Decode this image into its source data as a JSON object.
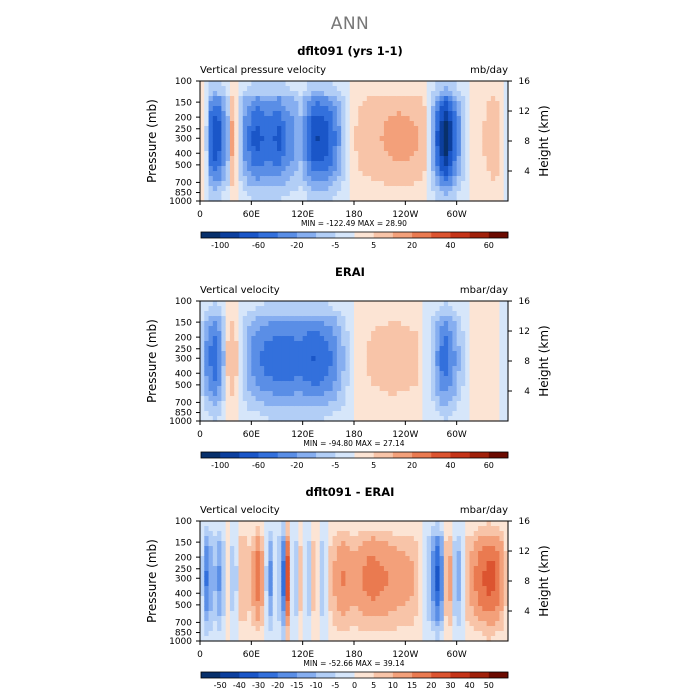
{
  "main_title": "ANN",
  "colors": {
    "palette_blue_to_red": [
      "#08306b",
      "#0c3f9e",
      "#1a56c8",
      "#3370dc",
      "#5a8ee6",
      "#86aef0",
      "#b2cef6",
      "#d6e6fa",
      "#fce4d4",
      "#f8c4a8",
      "#f3a07a",
      "#ea7a50",
      "#dc5430",
      "#c53418",
      "#a0200a",
      "#6b0a00"
    ]
  },
  "chart_data": [
    {
      "type": "heatmap",
      "title": "dflt091 (yrs 1-1)",
      "left_label": "Vertical pressure velocity",
      "right_label": "mb/day",
      "xlabel": "",
      "ylabel": "Pressure (mb)",
      "ylabel_right": "Height (km)",
      "x_ticks": [
        "0",
        "60E",
        "120E",
        "180",
        "120W",
        "60W"
      ],
      "x_tick_lon": [
        0,
        60,
        120,
        180,
        240,
        300
      ],
      "xlim": [
        0,
        360
      ],
      "y_ticks": [
        "100",
        "150",
        "200",
        "250",
        "300",
        "400",
        "500",
        "700",
        "850",
        "1000"
      ],
      "y_tick_values": [
        100,
        150,
        200,
        250,
        300,
        400,
        500,
        700,
        850,
        1000
      ],
      "ylim": [
        1000,
        100
      ],
      "right_ticks": [
        "4",
        "8",
        "12",
        "16"
      ],
      "right_tick_km": [
        4,
        8,
        12,
        16
      ],
      "stats": "MIN = -122.49   MAX =  28.90",
      "min": -122.49,
      "max": 28.9,
      "colorbar_labels": [
        "-100",
        "",
        "-60",
        "",
        "-20",
        "",
        "-5",
        "",
        "5",
        "",
        "20",
        "",
        "40",
        "",
        "60"
      ],
      "profile": [
        {
          "lon": 0,
          "v": -8
        },
        {
          "lon": 5,
          "v": 12
        },
        {
          "lon": 12,
          "v": -55
        },
        {
          "lon": 20,
          "v": -70
        },
        {
          "lon": 28,
          "v": -40
        },
        {
          "lon": 33,
          "v": -25
        },
        {
          "lon": 38,
          "v": 30
        },
        {
          "lon": 44,
          "v": -6
        },
        {
          "lon": 52,
          "v": -38
        },
        {
          "lon": 65,
          "v": -62
        },
        {
          "lon": 80,
          "v": -52
        },
        {
          "lon": 92,
          "v": -60
        },
        {
          "lon": 100,
          "v": -45
        },
        {
          "lon": 110,
          "v": -38
        },
        {
          "lon": 118,
          "v": -25
        },
        {
          "lon": 125,
          "v": -48
        },
        {
          "lon": 135,
          "v": -70
        },
        {
          "lon": 150,
          "v": -60
        },
        {
          "lon": 160,
          "v": -42
        },
        {
          "lon": 168,
          "v": -20
        },
        {
          "lon": 175,
          "v": 6
        },
        {
          "lon": 190,
          "v": 18
        },
        {
          "lon": 210,
          "v": 22
        },
        {
          "lon": 230,
          "v": 28
        },
        {
          "lon": 250,
          "v": 25
        },
        {
          "lon": 262,
          "v": 18
        },
        {
          "lon": 280,
          "v": -70
        },
        {
          "lon": 288,
          "v": -90
        },
        {
          "lon": 296,
          "v": -60
        },
        {
          "lon": 305,
          "v": -30
        },
        {
          "lon": 315,
          "v": 4
        },
        {
          "lon": 330,
          "v": 10
        },
        {
          "lon": 345,
          "v": 24
        },
        {
          "lon": 360,
          "v": -8
        }
      ]
    },
    {
      "type": "heatmap",
      "title": "ERAI",
      "left_label": "Vertical velocity",
      "right_label": "mbar/day",
      "xlabel": "",
      "ylabel": "Pressure (mb)",
      "ylabel_right": "Height (km)",
      "x_ticks": [
        "0",
        "60E",
        "120E",
        "180",
        "120W",
        "60W"
      ],
      "x_tick_lon": [
        0,
        60,
        120,
        180,
        240,
        300
      ],
      "xlim": [
        0,
        360
      ],
      "y_ticks": [
        "100",
        "150",
        "200",
        "250",
        "300",
        "400",
        "500",
        "700",
        "850",
        "1000"
      ],
      "y_tick_values": [
        100,
        150,
        200,
        250,
        300,
        400,
        500,
        700,
        850,
        1000
      ],
      "ylim": [
        1000,
        100
      ],
      "right_ticks": [
        "4",
        "8",
        "12",
        "16"
      ],
      "right_tick_km": [
        4,
        8,
        12,
        16
      ],
      "stats": "MIN =  -94.80   MAX =  27.14",
      "min": -94.8,
      "max": 27.14,
      "colorbar_labels": [
        "-100",
        "",
        "-60",
        "",
        "-20",
        "",
        "-5",
        "",
        "5",
        "",
        "20",
        "",
        "40",
        "",
        "60"
      ],
      "profile": [
        {
          "lon": 0,
          "v": -10
        },
        {
          "lon": 8,
          "v": -40
        },
        {
          "lon": 18,
          "v": -55
        },
        {
          "lon": 26,
          "v": -35
        },
        {
          "lon": 32,
          "v": 12
        },
        {
          "lon": 40,
          "v": 22
        },
        {
          "lon": 48,
          "v": -8
        },
        {
          "lon": 58,
          "v": -35
        },
        {
          "lon": 75,
          "v": -48
        },
        {
          "lon": 95,
          "v": -55
        },
        {
          "lon": 115,
          "v": -50
        },
        {
          "lon": 135,
          "v": -58
        },
        {
          "lon": 155,
          "v": -45
        },
        {
          "lon": 170,
          "v": -20
        },
        {
          "lon": 182,
          "v": 4
        },
        {
          "lon": 200,
          "v": 14
        },
        {
          "lon": 225,
          "v": 18
        },
        {
          "lon": 255,
          "v": 14
        },
        {
          "lon": 272,
          "v": -20
        },
        {
          "lon": 285,
          "v": -55
        },
        {
          "lon": 295,
          "v": -40
        },
        {
          "lon": 305,
          "v": -18
        },
        {
          "lon": 320,
          "v": 6
        },
        {
          "lon": 340,
          "v": 12
        },
        {
          "lon": 360,
          "v": -10
        }
      ]
    },
    {
      "type": "heatmap",
      "title": "dflt091 - ERAI",
      "left_label": "Vertical velocity",
      "right_label": "mbar/day",
      "xlabel": "",
      "ylabel": "Pressure (mb)",
      "ylabel_right": "Height (km)",
      "x_ticks": [
        "0",
        "60E",
        "120E",
        "180",
        "120W",
        "60W"
      ],
      "x_tick_lon": [
        0,
        60,
        120,
        180,
        240,
        300
      ],
      "xlim": [
        0,
        360
      ],
      "y_ticks": [
        "100",
        "150",
        "200",
        "250",
        "300",
        "400",
        "500",
        "700",
        "850",
        "1000"
      ],
      "y_tick_values": [
        100,
        150,
        200,
        250,
        300,
        400,
        500,
        700,
        850,
        1000
      ],
      "ylim": [
        1000,
        100
      ],
      "right_ticks": [
        "4",
        "8",
        "12",
        "16"
      ],
      "right_tick_km": [
        4,
        8,
        12,
        16
      ],
      "stats": "MIN =  -52.66   MAX =  39.14",
      "min": -52.66,
      "max": 39.14,
      "colorbar_labels": [
        "-50",
        "-40",
        "-30",
        "-20",
        "-15",
        "-10",
        "-5",
        "0",
        "5",
        "10",
        "15",
        "20",
        "30",
        "40",
        "50"
      ],
      "profile": [
        {
          "lon": 0,
          "v": 2
        },
        {
          "lon": 8,
          "v": -25
        },
        {
          "lon": 16,
          "v": -10
        },
        {
          "lon": 24,
          "v": -20
        },
        {
          "lon": 32,
          "v": 6
        },
        {
          "lon": 40,
          "v": -14
        },
        {
          "lon": 48,
          "v": 12
        },
        {
          "lon": 58,
          "v": 8
        },
        {
          "lon": 70,
          "v": 24
        },
        {
          "lon": 78,
          "v": -8
        },
        {
          "lon": 84,
          "v": -22
        },
        {
          "lon": 90,
          "v": 12
        },
        {
          "lon": 96,
          "v": -44
        },
        {
          "lon": 102,
          "v": 30
        },
        {
          "lon": 110,
          "v": -18
        },
        {
          "lon": 118,
          "v": 10
        },
        {
          "lon": 126,
          "v": -15
        },
        {
          "lon": 134,
          "v": 14
        },
        {
          "lon": 142,
          "v": -10
        },
        {
          "lon": 152,
          "v": 8
        },
        {
          "lon": 165,
          "v": 18
        },
        {
          "lon": 180,
          "v": 14
        },
        {
          "lon": 200,
          "v": 20
        },
        {
          "lon": 225,
          "v": 16
        },
        {
          "lon": 250,
          "v": 12
        },
        {
          "lon": 268,
          "v": -12
        },
        {
          "lon": 280,
          "v": -35
        },
        {
          "lon": 290,
          "v": 24
        },
        {
          "lon": 300,
          "v": -20
        },
        {
          "lon": 312,
          "v": 10
        },
        {
          "lon": 325,
          "v": 20
        },
        {
          "lon": 340,
          "v": 26
        },
        {
          "lon": 352,
          "v": 18
        },
        {
          "lon": 360,
          "v": 2
        }
      ]
    }
  ]
}
